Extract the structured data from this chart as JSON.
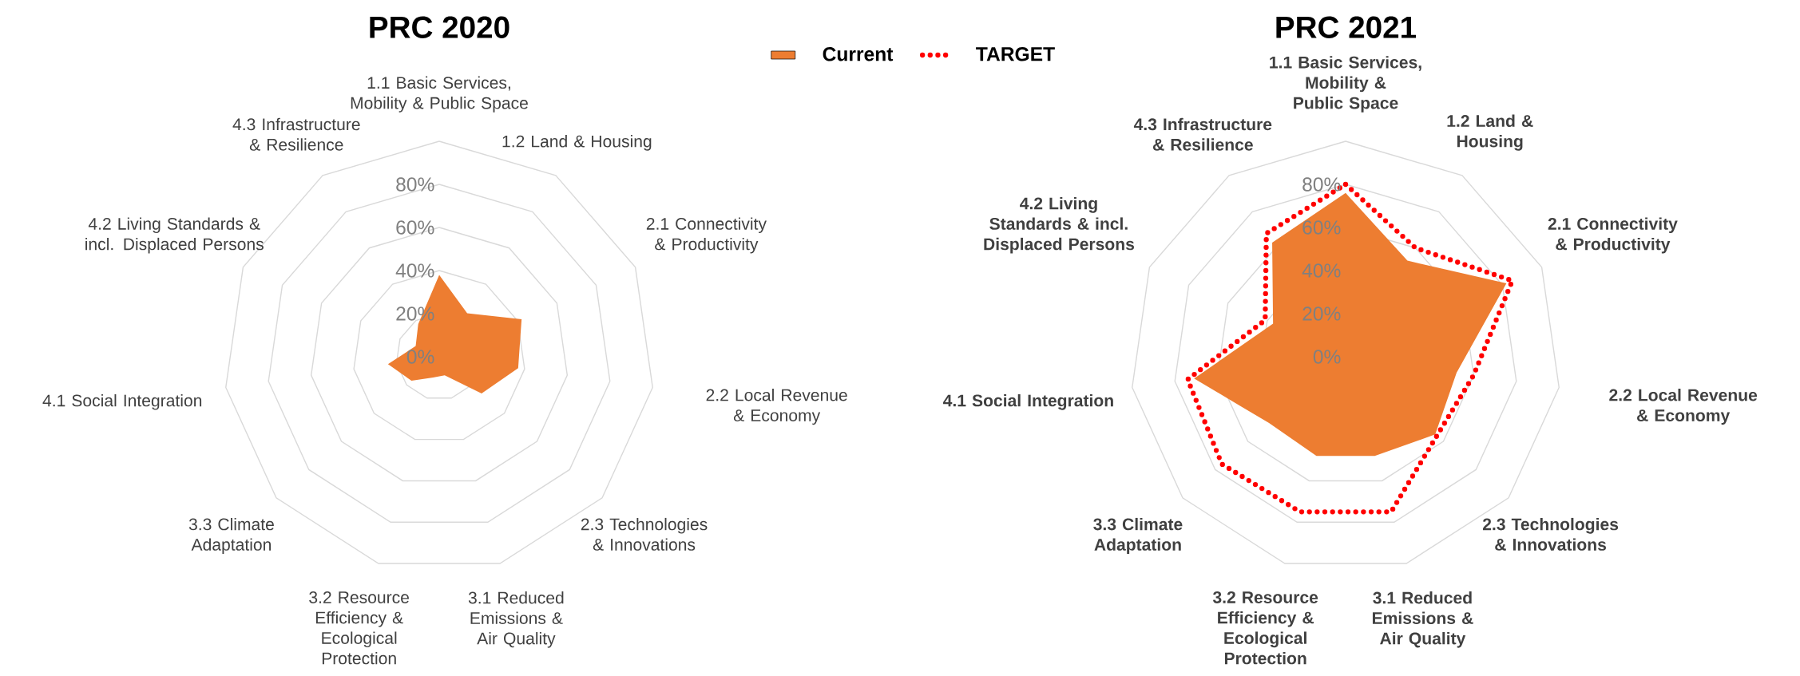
{
  "chart_data": [
    {
      "type": "radar",
      "title": "PRC 2020",
      "categories": [
        "1.1 Basic Services, Mobility & Public Space",
        "1.2 Land & Housing",
        "2.1 Connectivity & Productivity",
        "2.2 Local Revenue & Economy",
        "2.3 Technologies & Innovations",
        "3.1 Reduced Emissions & Air Quality",
        "3.2 Resource Efficiency & Ecological Protection",
        "3.3 Climate Adaptation",
        "4.1 Social Integration",
        "4.2 Living Standards & incl. Displaced Persons",
        "4.3 Infrastructure & Resilience"
      ],
      "series": [
        {
          "type": "area",
          "color": "#ed7d31",
          "values": [
            38,
            24,
            42,
            37,
            26,
            9,
            10,
            17,
            24,
            12,
            18
          ]
        }
      ],
      "ylim": [
        0,
        100
      ],
      "yticks": [
        {
          "value": 0,
          "label": "0%"
        },
        {
          "value": 20,
          "label": "20%"
        },
        {
          "value": 40,
          "label": "40%"
        },
        {
          "value": 60,
          "label": "60%"
        },
        {
          "value": 80,
          "label": "80%"
        }
      ],
      "grid": true
    },
    {
      "type": "radar",
      "title": "PRC 2021",
      "categories": [
        "1.1 Basic Services, Mobility & Public Space",
        "1.2 Land & Housing",
        "2.1 Connectivity & Productivity",
        "2.2 Local Revenue & Economy",
        "2.3 Technologies & Innovations",
        "3.1 Reduced Emissions & Air Quality",
        "3.2 Resource Efficiency & Ecological Protection",
        "3.3 Climate Adaptation",
        "4.1 Social Integration",
        "4.2 Living Standards & incl. Displaced Persons",
        "4.3 Infrastructure  & Resilience"
      ],
      "series": [
        {
          "name": "Current",
          "type": "area",
          "color": "#ed7d31",
          "values": [
            76,
            53,
            82,
            52,
            55,
            48,
            48,
            47,
            71,
            37,
            63
          ]
        },
        {
          "name": "TARGET",
          "color": "#ff0000",
          "line_style": "dotted",
          "values": [
            80,
            60,
            85,
            60,
            56,
            75,
            75,
            76,
            74,
            41,
            68
          ]
        }
      ],
      "ylim": [
        0,
        100
      ],
      "yticks": [
        {
          "value": 0,
          "label": "0%"
        },
        {
          "value": 20,
          "label": "20%"
        },
        {
          "value": 40,
          "label": "40%"
        },
        {
          "value": 60,
          "label": "60%"
        },
        {
          "value": 80,
          "label": "80%"
        }
      ],
      "grid": true,
      "legend": "top"
    }
  ]
}
